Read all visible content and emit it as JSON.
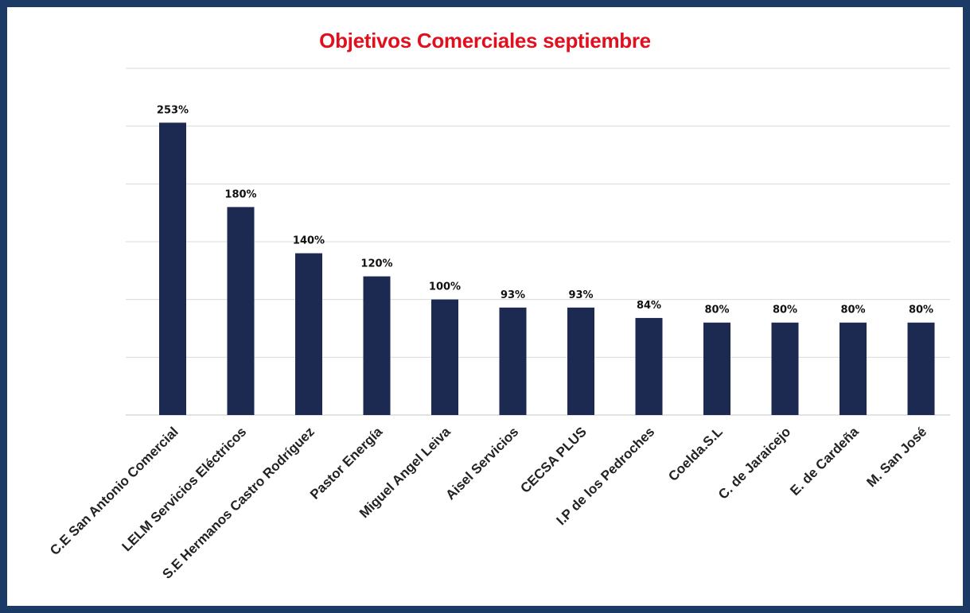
{
  "chart_data": {
    "type": "bar",
    "title": "Objetivos Comerciales septiembre",
    "xlabel": "",
    "ylabel": "",
    "categories": [
      "C.E San Antonio Comercial",
      "LELM Servicios Eléctricos",
      "S.E Hermanos Castro Rodríguez",
      "Pastor Energía",
      "Miguel Angel Leiva",
      "Aisel Servicios",
      "CECSA PLUS",
      "I.P de los Pedroches",
      "Coelda.S.L",
      "C. de Jaraicejo",
      "E. de Cardeña",
      "M. San José"
    ],
    "values": [
      253,
      180,
      140,
      120,
      100,
      93,
      93,
      84,
      80,
      80,
      80,
      80
    ],
    "data_labels": [
      "253%",
      "180%",
      "140%",
      "120%",
      "100%",
      "93%",
      "93%",
      "84%",
      "80%",
      "80%",
      "80%",
      "80%"
    ],
    "ylim": [
      0,
      300
    ],
    "grid": true,
    "legend": "none",
    "colors": {
      "bar": "#1c2a52",
      "title": "#e0101f",
      "grid": "#d9d9d9",
      "frame": "#1c3a66"
    }
  }
}
